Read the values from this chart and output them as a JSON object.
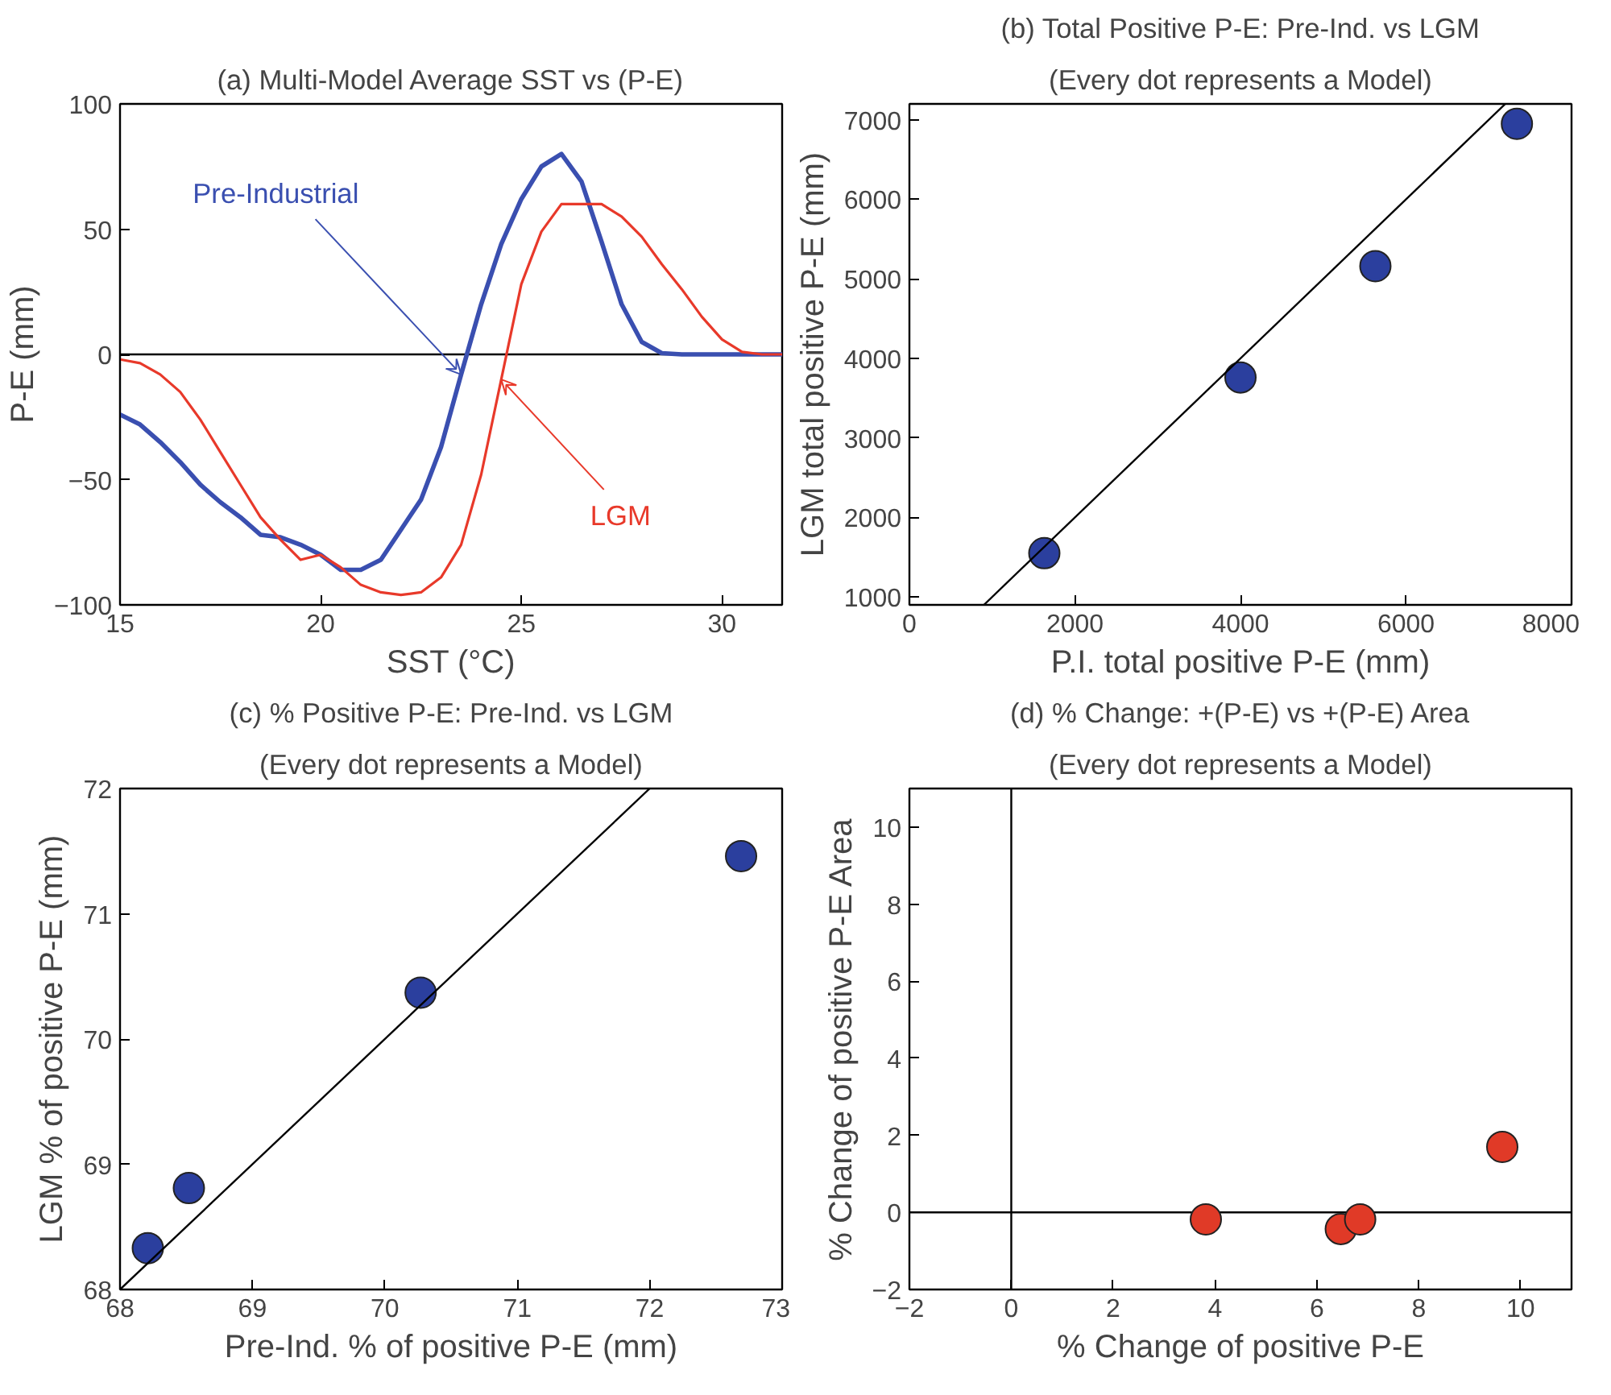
{
  "chart_data": [
    {
      "type": "line",
      "title": "(a) Multi-Model Average SST vs (P-E)",
      "xlabel": "SST (°C)",
      "ylabel": "P-E (mm)",
      "xlim": [
        15,
        31.5
      ],
      "ylim": [
        -100,
        100
      ],
      "xticks": [
        15,
        20,
        25,
        30
      ],
      "yticks": [
        -100,
        -50,
        0,
        50,
        100
      ],
      "grid": false,
      "legend": false,
      "marker": "none",
      "line_style": "solid",
      "x": [
        15,
        15.5,
        16,
        16.5,
        17,
        17.5,
        18,
        18.5,
        19,
        19.5,
        20,
        20.5,
        21,
        21.5,
        22,
        22.5,
        23,
        23.5,
        24,
        24.5,
        25,
        25.5,
        26,
        26.5,
        27,
        27.5,
        28,
        28.5,
        29,
        29.5,
        30,
        30.5,
        31,
        31.5
      ],
      "series": [
        {
          "name": "Pre-Industrial",
          "color": "#3a4fb0",
          "values": [
            -24,
            -28,
            -35,
            -43,
            -52,
            -59,
            -65,
            -72,
            -73,
            -76,
            -80,
            -86,
            -86,
            -82,
            -70,
            -58,
            -37,
            -8,
            20,
            44,
            62,
            75,
            80,
            69,
            45,
            20,
            5,
            0.5,
            0,
            0,
            0,
            0,
            0,
            0
          ]
        },
        {
          "name": "LGM",
          "color": "#e8392a",
          "values": [
            -2,
            -3.5,
            -8,
            -15,
            -26,
            -39,
            -52,
            -65,
            -74,
            -82,
            -80,
            -85,
            -92,
            -95,
            -96,
            -95,
            -89,
            -76,
            -48,
            -10,
            28,
            49,
            60,
            60,
            60,
            55,
            47,
            36,
            26,
            15,
            6,
            1,
            0,
            0
          ]
        }
      ],
      "ref_lines": [
        {
          "axis": "y",
          "value": 0,
          "color": "#000000"
        }
      ]
    },
    {
      "type": "scatter",
      "title": "(b) Total Positive P-E: Pre-Ind. vs LGM",
      "subtitle": "(Every dot represents a Model)",
      "xlabel": "P.I. total positive P-E (mm)",
      "ylabel": "LGM total positive P-E (mm)",
      "xlim": [
        0,
        8000
      ],
      "ylim": [
        900,
        7200
      ],
      "xticks": [
        0,
        2000,
        4000,
        6000,
        8000
      ],
      "yticks": [
        1000,
        2000,
        3000,
        4000,
        5000,
        6000,
        7000
      ],
      "grid": false,
      "legend": false,
      "marker": "circle",
      "series": [
        {
          "type": "scatter",
          "color": "#2b3f9e",
          "x": [
            1630,
            4000,
            5630,
            7340
          ],
          "values": [
            1550,
            3760,
            5160,
            6950
          ]
        },
        {
          "type": "line",
          "marker": "none",
          "color": "#000000",
          "x": [
            900,
            7200
          ],
          "values": [
            900,
            7200
          ]
        }
      ]
    },
    {
      "type": "scatter",
      "title": "(c) % Positive P-E: Pre-Ind. vs LGM",
      "subtitle": "(Every dot represents a Model)",
      "xlabel": "Pre-Ind. % of positive P-E (mm)",
      "ylabel": "LGM % of positive P-E (mm)",
      "xlim": [
        68,
        73
      ],
      "ylim": [
        68,
        72
      ],
      "xticks": [
        68,
        69,
        70,
        71,
        72,
        73
      ],
      "yticks": [
        68,
        69,
        70,
        71,
        72
      ],
      "grid": false,
      "legend": false,
      "marker": "circle",
      "series": [
        {
          "type": "scatter",
          "color": "#2b3f9e",
          "x": [
            68.21,
            68.52,
            70.27,
            72.69
          ],
          "values": [
            68.33,
            68.81,
            70.37,
            71.46
          ]
        },
        {
          "type": "line",
          "marker": "none",
          "color": "#000000",
          "x": [
            68,
            72
          ],
          "values": [
            68,
            72
          ]
        }
      ]
    },
    {
      "type": "scatter",
      "title": "(d) % Change: +(P-E) vs +(P-E) Area",
      "subtitle": "(Every dot represents a Model)",
      "xlabel": "% Change of positive P-E",
      "ylabel": "% Change of positive P-E Area",
      "xlim": [
        -2,
        11
      ],
      "ylim": [
        -2,
        11
      ],
      "xticks": [
        -2,
        0,
        2,
        4,
        6,
        8,
        10
      ],
      "yticks": [
        -2,
        0,
        2,
        4,
        6,
        8,
        10
      ],
      "grid": false,
      "legend": false,
      "marker": "circle",
      "series": [
        {
          "type": "scatter",
          "color": "#e03a27",
          "x": [
            3.82,
            6.47,
            6.85,
            9.64
          ],
          "values": [
            -0.18,
            -0.43,
            -0.18,
            1.7
          ]
        }
      ],
      "ref_lines": [
        {
          "axis": "x",
          "value": 0,
          "color": "#000000"
        },
        {
          "axis": "y",
          "value": 0,
          "color": "#000000"
        }
      ]
    }
  ]
}
